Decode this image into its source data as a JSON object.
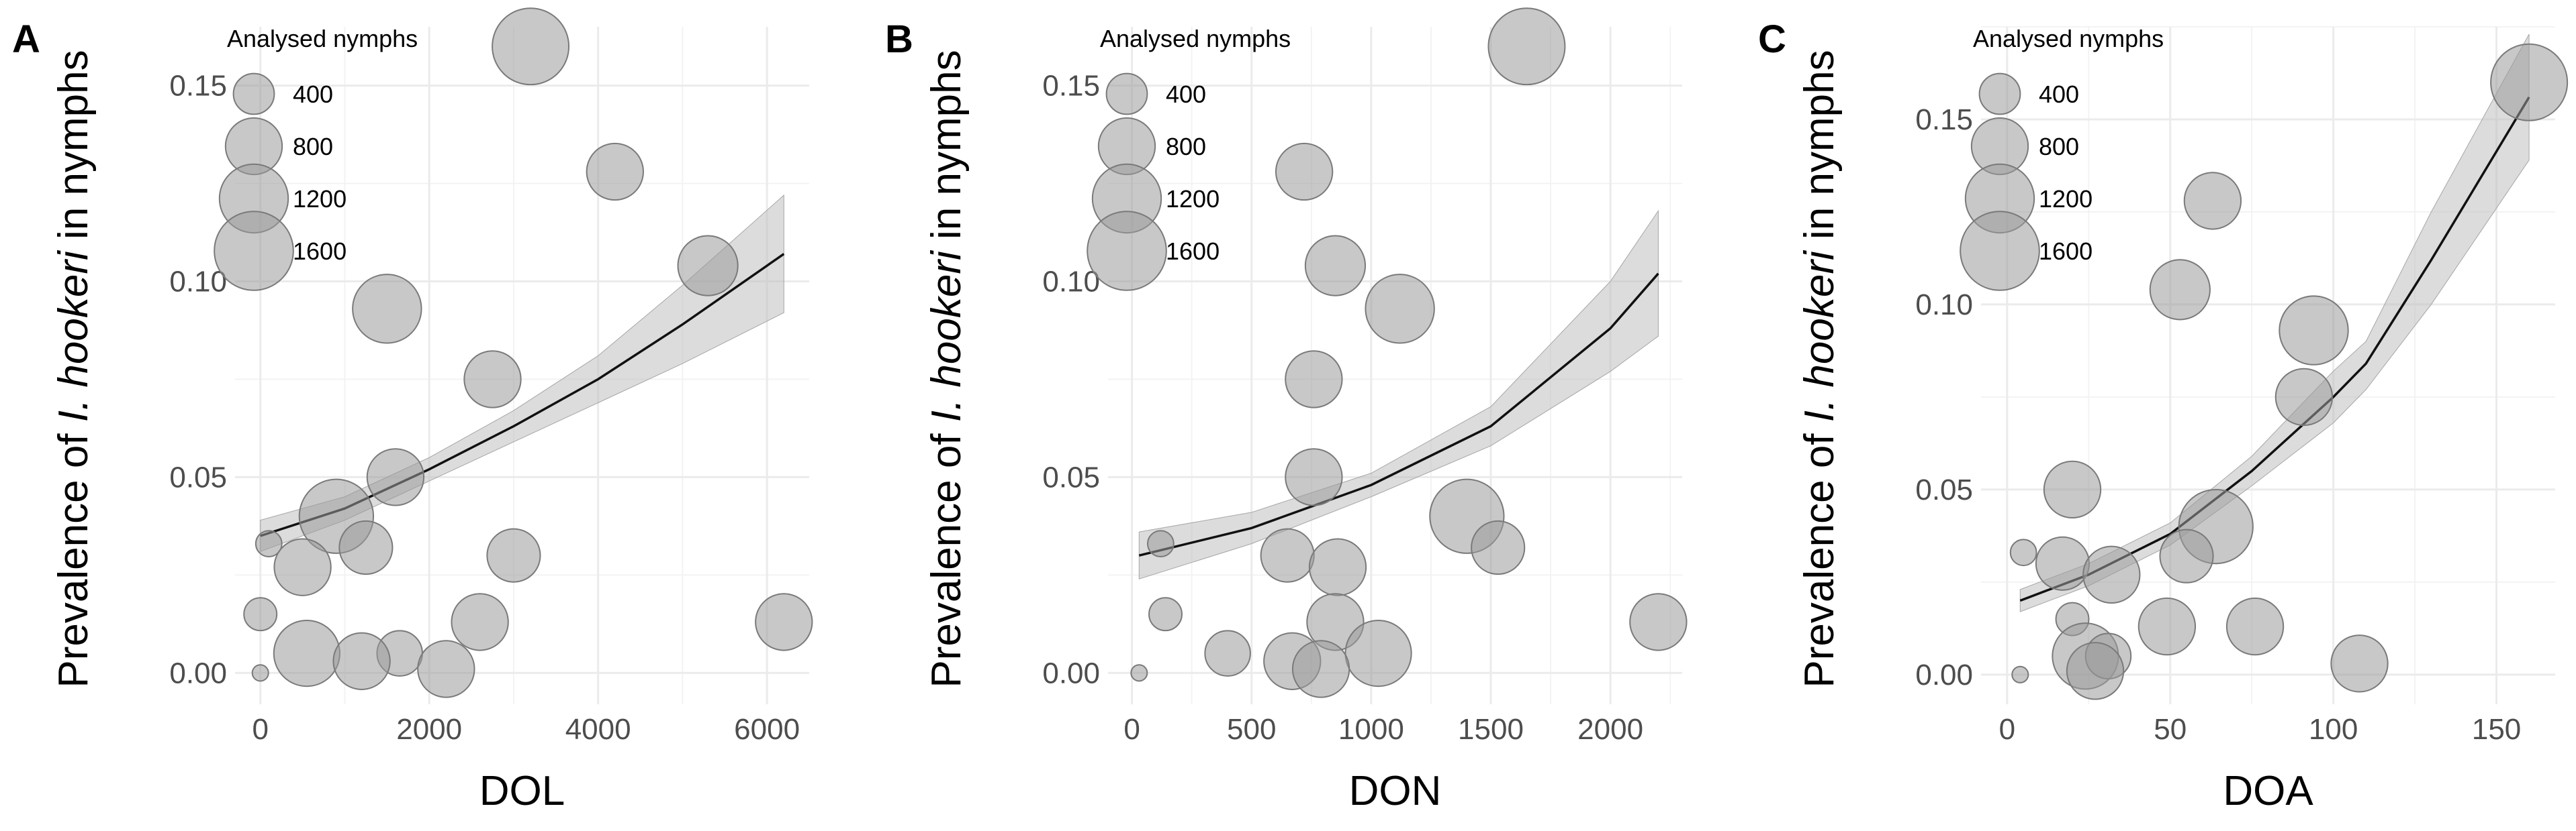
{
  "chart_data": [
    {
      "panel": "A",
      "type": "scatter",
      "xlabel": "DOL",
      "ylabel_prefix": "Prevalence of ",
      "ylabel_italic": "I. hookeri",
      "ylabel_suffix": " in nymphs",
      "xlim": [
        -300,
        6500
      ],
      "ylim": [
        -0.008,
        0.165
      ],
      "xticks": [
        0,
        2000,
        4000,
        6000
      ],
      "xtick_labels": [
        "0",
        "2000",
        "4000",
        "6000"
      ],
      "yticks": [
        0,
        0.05,
        0.1,
        0.15
      ],
      "ytick_labels": [
        "0.00",
        "0.05",
        "0.10",
        "0.15"
      ],
      "legend_title": "Analysed nymphs",
      "legend_sizes": [
        400,
        800,
        1200,
        1600
      ],
      "legend_labels": [
        "400",
        "800",
        "1200",
        "1600"
      ],
      "points": [
        {
          "x": 3200,
          "y": 0.16,
          "n": 1500
        },
        {
          "x": 4200,
          "y": 0.128,
          "n": 800
        },
        {
          "x": 5300,
          "y": 0.104,
          "n": 900
        },
        {
          "x": 1500,
          "y": 0.093,
          "n": 1200
        },
        {
          "x": 2750,
          "y": 0.075,
          "n": 800
        },
        {
          "x": 1600,
          "y": 0.05,
          "n": 800
        },
        {
          "x": 900,
          "y": 0.04,
          "n": 1400
        },
        {
          "x": 100,
          "y": 0.033,
          "n": 150
        },
        {
          "x": 1250,
          "y": 0.032,
          "n": 700
        },
        {
          "x": 3000,
          "y": 0.03,
          "n": 700
        },
        {
          "x": 500,
          "y": 0.027,
          "n": 800
        },
        {
          "x": 0,
          "y": 0.015,
          "n": 250
        },
        {
          "x": 2600,
          "y": 0.013,
          "n": 800
        },
        {
          "x": 6200,
          "y": 0.013,
          "n": 800
        },
        {
          "x": 550,
          "y": 0.005,
          "n": 1100
        },
        {
          "x": 1650,
          "y": 0.005,
          "n": 500
        },
        {
          "x": 1200,
          "y": 0.003,
          "n": 800
        },
        {
          "x": 2200,
          "y": 0.001,
          "n": 800
        },
        {
          "x": 0,
          "y": 0.0,
          "n": 50
        }
      ],
      "fit_x": [
        0,
        1000,
        2000,
        3000,
        4000,
        5000,
        6200
      ],
      "fit_y": [
        0.035,
        0.042,
        0.052,
        0.063,
        0.075,
        0.089,
        0.107
      ],
      "ci_lower": [
        0.031,
        0.039,
        0.049,
        0.059,
        0.069,
        0.079,
        0.092
      ],
      "ci_upper": [
        0.039,
        0.045,
        0.055,
        0.067,
        0.081,
        0.099,
        0.122
      ]
    },
    {
      "panel": "B",
      "type": "scatter",
      "xlabel": "DON",
      "ylabel_prefix": "Prevalence of ",
      "ylabel_italic": "I. hookeri",
      "ylabel_suffix": " in nymphs",
      "xlim": [
        -100,
        2300
      ],
      "ylim": [
        -0.008,
        0.165
      ],
      "xticks": [
        0,
        500,
        1000,
        1500,
        2000
      ],
      "xtick_labels": [
        "0",
        "500",
        "1000",
        "1500",
        "2000"
      ],
      "yticks": [
        0,
        0.05,
        0.1,
        0.15
      ],
      "ytick_labels": [
        "0.00",
        "0.05",
        "0.10",
        "0.15"
      ],
      "legend_title": "Analysed nymphs",
      "legend_sizes": [
        400,
        800,
        1200,
        1600
      ],
      "legend_labels": [
        "400",
        "800",
        "1200",
        "1600"
      ],
      "points": [
        {
          "x": 1650,
          "y": 0.16,
          "n": 1500
        },
        {
          "x": 720,
          "y": 0.128,
          "n": 800
        },
        {
          "x": 850,
          "y": 0.104,
          "n": 900
        },
        {
          "x": 1120,
          "y": 0.093,
          "n": 1200
        },
        {
          "x": 760,
          "y": 0.075,
          "n": 800
        },
        {
          "x": 760,
          "y": 0.05,
          "n": 800
        },
        {
          "x": 1400,
          "y": 0.04,
          "n": 1400
        },
        {
          "x": 120,
          "y": 0.033,
          "n": 150
        },
        {
          "x": 1530,
          "y": 0.032,
          "n": 700
        },
        {
          "x": 650,
          "y": 0.03,
          "n": 700
        },
        {
          "x": 860,
          "y": 0.027,
          "n": 800
        },
        {
          "x": 140,
          "y": 0.015,
          "n": 250
        },
        {
          "x": 850,
          "y": 0.013,
          "n": 800
        },
        {
          "x": 2200,
          "y": 0.013,
          "n": 800
        },
        {
          "x": 1030,
          "y": 0.005,
          "n": 1100
        },
        {
          "x": 400,
          "y": 0.005,
          "n": 500
        },
        {
          "x": 670,
          "y": 0.003,
          "n": 800
        },
        {
          "x": 790,
          "y": 0.001,
          "n": 800
        },
        {
          "x": 30,
          "y": 0.0,
          "n": 50
        }
      ],
      "fit_x": [
        30,
        500,
        1000,
        1500,
        2000,
        2200
      ],
      "fit_y": [
        0.03,
        0.037,
        0.048,
        0.063,
        0.088,
        0.102
      ],
      "ci_lower": [
        0.024,
        0.033,
        0.045,
        0.058,
        0.077,
        0.086
      ],
      "ci_upper": [
        0.036,
        0.041,
        0.051,
        0.068,
        0.1,
        0.118
      ]
    },
    {
      "panel": "C",
      "type": "scatter",
      "xlabel": "DOA",
      "ylabel_prefix": "Prevalence of ",
      "ylabel_italic": "I. hookeri",
      "ylabel_suffix": " in nymphs",
      "xlim": [
        -8,
        168
      ],
      "ylim": [
        -0.008,
        0.175
      ],
      "xticks": [
        0,
        50,
        100,
        150
      ],
      "xtick_labels": [
        "0",
        "50",
        "100",
        "150"
      ],
      "yticks": [
        0,
        0.05,
        0.1,
        0.15
      ],
      "ytick_labels": [
        "0.00",
        "0.05",
        "0.10",
        "0.15"
      ],
      "legend_title": "Analysed nymphs",
      "legend_sizes": [
        400,
        800,
        1200,
        1600
      ],
      "legend_labels": [
        "400",
        "800",
        "1200",
        "1600"
      ],
      "points": [
        {
          "x": 160,
          "y": 0.16,
          "n": 1500
        },
        {
          "x": 63,
          "y": 0.128,
          "n": 800
        },
        {
          "x": 53,
          "y": 0.104,
          "n": 900
        },
        {
          "x": 94,
          "y": 0.093,
          "n": 1200
        },
        {
          "x": 91,
          "y": 0.075,
          "n": 800
        },
        {
          "x": 20,
          "y": 0.05,
          "n": 800
        },
        {
          "x": 64,
          "y": 0.04,
          "n": 1400
        },
        {
          "x": 5,
          "y": 0.033,
          "n": 150
        },
        {
          "x": 55,
          "y": 0.032,
          "n": 700
        },
        {
          "x": 17,
          "y": 0.03,
          "n": 700
        },
        {
          "x": 32,
          "y": 0.027,
          "n": 800
        },
        {
          "x": 20,
          "y": 0.015,
          "n": 250
        },
        {
          "x": 49,
          "y": 0.013,
          "n": 800
        },
        {
          "x": 76,
          "y": 0.013,
          "n": 800
        },
        {
          "x": 24,
          "y": 0.005,
          "n": 1100
        },
        {
          "x": 31,
          "y": 0.005,
          "n": 500
        },
        {
          "x": 108,
          "y": 0.003,
          "n": 800
        },
        {
          "x": 27,
          "y": 0.001,
          "n": 800
        },
        {
          "x": 4,
          "y": 0.0,
          "n": 50
        }
      ],
      "fit_x": [
        4,
        25,
        50,
        75,
        100,
        110,
        130,
        160
      ],
      "fit_y": [
        0.02,
        0.027,
        0.038,
        0.055,
        0.075,
        0.084,
        0.112,
        0.156
      ],
      "ci_lower": [
        0.017,
        0.024,
        0.035,
        0.051,
        0.068,
        0.077,
        0.1,
        0.139
      ],
      "ci_upper": [
        0.023,
        0.03,
        0.041,
        0.059,
        0.082,
        0.09,
        0.125,
        0.173
      ]
    }
  ]
}
